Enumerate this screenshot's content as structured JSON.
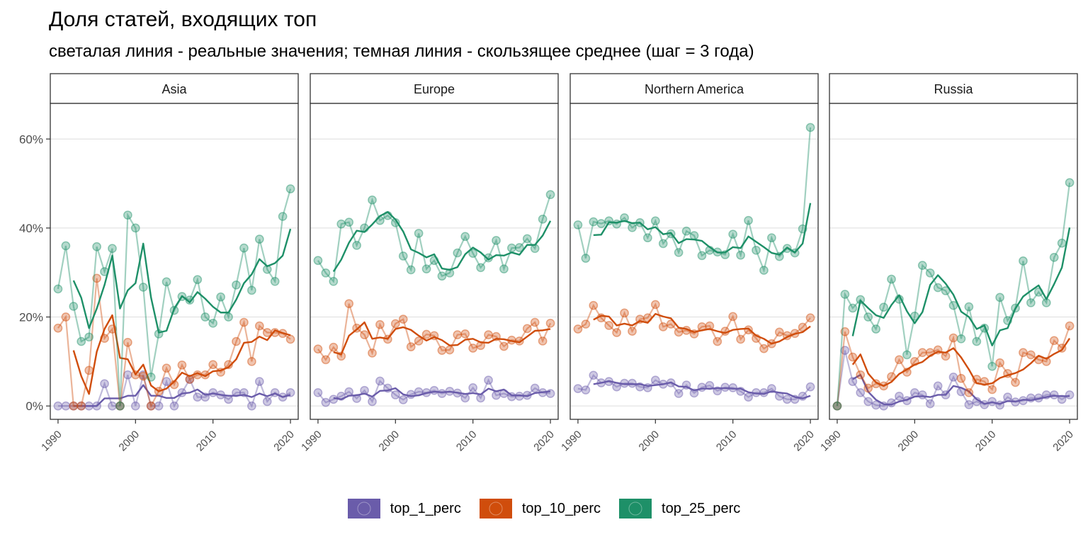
{
  "chart_data": {
    "type": "line",
    "title": "Доля статей, входящих топ",
    "subtitle": "светалая линия - реальные значения; темная линия - скользящее среднее (шаг = 3 года)",
    "xlabel": "",
    "ylabel": "",
    "xlim": [
      1989,
      2021
    ],
    "ylim": [
      -3,
      68
    ],
    "x_ticks": [
      1990,
      2000,
      2010,
      2020
    ],
    "y_ticks": [
      0,
      20,
      40,
      60
    ],
    "y_tick_labels": [
      "0%",
      "20%",
      "40%",
      "60%"
    ],
    "grid": true,
    "legend_position": "bottom",
    "series_names": [
      "top_1_perc",
      "top_10_perc",
      "top_25_perc"
    ],
    "series_colors": [
      "#6a5caa",
      "#d04d0c",
      "#1e9068"
    ],
    "panels": [
      {
        "name": "Asia",
        "years": [
          1990,
          1991,
          1992,
          1993,
          1994,
          1995,
          1996,
          1997,
          1998,
          1999,
          2000,
          2001,
          2002,
          2003,
          2004,
          2005,
          2006,
          2007,
          2008,
          2009,
          2010,
          2011,
          2012,
          2013,
          2014,
          2015,
          2016,
          2017,
          2018,
          2019,
          2020
        ],
        "series": [
          {
            "name": "top_1_perc",
            "values": [
              0,
              0,
              0,
              0,
              0,
              0,
              5,
              0,
              0,
              7,
              0,
              7,
              0,
              0,
              5.5,
              0,
              3,
              6,
              2,
              2,
              3,
              2.5,
              1.5,
              3,
              3,
              0,
              5.5,
              1,
              3,
              2,
              3
            ],
            "moving_avg": [
              null,
              null,
              0,
              0,
              0,
              0,
              1.7,
              1.7,
              1.7,
              2.3,
              2.3,
              4.7,
              2.3,
              2.3,
              1.8,
              1.8,
              2.8,
              3,
              3.7,
              2.5,
              2.8,
              2.5,
              2.3,
              2.3,
              2.5,
              2,
              2.8,
              2.2,
              2.8,
              2,
              2.5
            ]
          },
          {
            "name": "top_10_perc",
            "values": [
              17.5,
              20,
              0,
              0,
              8,
              28.7,
              15.2,
              17.3,
              0,
              14.3,
              7,
              6.7,
              0,
              3.3,
              8.5,
              4.8,
              9.2,
              6,
              7,
              7,
              9.3,
              7.6,
              9.3,
              14.5,
              18.8,
              10,
              18,
              16.5,
              16.5,
              16.3,
              15
            ],
            "moving_avg": [
              null,
              null,
              12.5,
              6.7,
              2.7,
              12.2,
              17.3,
              20.4,
              10.8,
              10.5,
              7.1,
              9.3,
              4.6,
              3.3,
              3.9,
              5.5,
              7.5,
              6.7,
              7.4,
              6.7,
              7.8,
              8,
              8.7,
              10.5,
              14.2,
              14.4,
              15.6,
              14.8,
              17,
              16.4,
              15.9
            ]
          },
          {
            "name": "top_25_perc",
            "values": [
              26.3,
              36,
              22.4,
              14.5,
              15.5,
              35.8,
              30.2,
              35.4,
              0,
              42.9,
              40,
              26.7,
              6.5,
              16.2,
              27.9,
              21.5,
              24.6,
              23.8,
              28.4,
              20,
              18.6,
              24.5,
              20,
              27.2,
              35.5,
              26,
              37.5,
              30.7,
              28,
              42.6,
              48.8
            ],
            "moving_avg": [
              null,
              null,
              28.2,
              24.3,
              17.5,
              21.9,
              27.2,
              33.8,
              21.9,
              26,
              27.6,
              36.5,
              24.4,
              16.5,
              16.9,
              21.9,
              24.7,
              23.3,
              25.6,
              24.1,
              22.3,
              21,
              21,
              23.9,
              27.6,
              29.6,
              33,
              31.4,
              32.1,
              33.8,
              39.8
            ]
          }
        ]
      },
      {
        "name": "Europe",
        "years": [
          1990,
          1991,
          1992,
          1993,
          1994,
          1995,
          1996,
          1997,
          1998,
          1999,
          2000,
          2001,
          2002,
          2003,
          2004,
          2005,
          2006,
          2007,
          2008,
          2009,
          2010,
          2011,
          2012,
          2013,
          2014,
          2015,
          2016,
          2017,
          2018,
          2019,
          2020
        ],
        "series": [
          {
            "name": "top_1_perc",
            "values": [
              3,
              0.8,
              1.5,
              2.2,
              3.2,
              1.7,
              3.5,
              1,
              5.6,
              4,
              2.5,
              1.4,
              2.6,
              3.2,
              3,
              3.5,
              2.8,
              3.3,
              2.9,
              1.8,
              4.1,
              1.8,
              5.8,
              2.4,
              2.8,
              2.1,
              2.2,
              2.4,
              4,
              3,
              2.8
            ],
            "moving_avg": [
              null,
              null,
              1.8,
              1.5,
              2.3,
              2.4,
              2.8,
              2.1,
              3.4,
              3.5,
              4,
              2.6,
              2.2,
              2.4,
              2.9,
              3.2,
              3.1,
              3.2,
              3,
              2.7,
              2.9,
              2.6,
              3.9,
              3.3,
              3.7,
              2.4,
              2.4,
              2.2,
              2.9,
              3.1,
              3.3
            ]
          },
          {
            "name": "top_10_perc",
            "values": [
              12.8,
              10.4,
              13.2,
              11.2,
              23,
              17.5,
              16,
              11.9,
              18.3,
              15,
              18.5,
              19.5,
              13.3,
              14.6,
              16.1,
              15.8,
              12.5,
              12.6,
              16,
              16.2,
              13,
              13.6,
              16,
              15.6,
              13.4,
              14.8,
              14.6,
              17.4,
              18.8,
              14.6,
              18.6
            ],
            "moving_avg": [
              null,
              null,
              12.1,
              11.6,
              15.8,
              17.2,
              18.8,
              15.1,
              15.4,
              15.1,
              17.3,
              17.7,
              17.1,
              15.8,
              14.7,
              15.5,
              14.8,
              13.6,
              13.7,
              14.9,
              15.1,
              14.3,
              14.2,
              15.1,
              15,
              14.6,
              14.3,
              15.6,
              16.9,
              17,
              17.3
            ]
          },
          {
            "name": "top_25_perc",
            "values": [
              32.7,
              29.9,
              28,
              40.9,
              41.3,
              36.1,
              40,
              46.3,
              41.7,
              42.8,
              41.2,
              33.7,
              30.6,
              38.8,
              30.8,
              32.7,
              29.2,
              29.9,
              34.4,
              38.1,
              34.3,
              31.1,
              33.3,
              37.2,
              30.8,
              35.5,
              35.6,
              37.6,
              35.4,
              42,
              47.5
            ],
            "moving_avg": [
              null,
              null,
              30.2,
              32.9,
              36.7,
              39.4,
              39.1,
              40.8,
              42.7,
              43.6,
              41.9,
              39.2,
              35.2,
              34.4,
              33.4,
              34.1,
              30.9,
              30.6,
              31.2,
              34.1,
              35.6,
              34.5,
              32.9,
              33.9,
              33.8,
              34.5,
              34,
              36.2,
              36.2,
              38.3,
              41.6
            ]
          }
        ]
      },
      {
        "name": "Northern America",
        "years": [
          1990,
          1991,
          1992,
          1993,
          1994,
          1995,
          1996,
          1997,
          1998,
          1999,
          2000,
          2001,
          2002,
          2003,
          2004,
          2005,
          2006,
          2007,
          2008,
          2009,
          2010,
          2011,
          2012,
          2013,
          2014,
          2015,
          2016,
          2017,
          2018,
          2019,
          2020
        ],
        "series": [
          {
            "name": "top_1_perc",
            "values": [
              3.9,
              3.6,
              6.9,
              5.2,
              5.5,
              4.3,
              5.1,
              5.1,
              4.3,
              4.1,
              5.8,
              4.9,
              5.2,
              2.8,
              4.7,
              2.9,
              4.2,
              4.6,
              3.4,
              4.2,
              4.1,
              3.3,
              2,
              3,
              3,
              3.9,
              2.2,
              1.5,
              1.5,
              2.2,
              4.3
            ],
            "moving_avg": [
              null,
              null,
              4.9,
              5.2,
              5.6,
              5.2,
              4.9,
              4.9,
              4.9,
              4.5,
              4.7,
              4.9,
              5.3,
              4.4,
              4.3,
              3.5,
              3.9,
              3.9,
              4,
              4,
              3.9,
              3.9,
              3.1,
              2.8,
              2.7,
              3.3,
              3,
              2.8,
              2,
              1.7,
              2.3
            ]
          },
          {
            "name": "top_10_perc",
            "values": [
              17.3,
              18.4,
              22.6,
              19.8,
              18.1,
              16.5,
              20.9,
              16.8,
              19.5,
              19.8,
              22.8,
              17.8,
              18.4,
              16.6,
              17,
              16.2,
              17.8,
              18,
              14.5,
              16.8,
              20.1,
              15,
              17.1,
              15.2,
              12.9,
              14,
              16.6,
              15.8,
              16.3,
              17.7,
              19.8
            ],
            "moving_avg": [
              null,
              null,
              19.4,
              20.3,
              20.1,
              18.1,
              18.5,
              18.1,
              19.1,
              18.7,
              20.7,
              20.1,
              19.7,
              17.6,
              17.3,
              16.6,
              17,
              17.3,
              16.8,
              16.4,
              17.1,
              17.3,
              17.4,
              15.8,
              15.1,
              14,
              14.5,
              15.5,
              16.2,
              16.6,
              17.9
            ]
          },
          {
            "name": "top_25_perc",
            "values": [
              40.7,
              33.2,
              41.4,
              41,
              41.6,
              40.9,
              42.3,
              40.1,
              41.2,
              37.8,
              41.6,
              36.5,
              38.7,
              34.5,
              39.3,
              38.3,
              33.8,
              35,
              34.6,
              34,
              38.6,
              33.9,
              41.7,
              35,
              30.5,
              37.8,
              33.6,
              35.4,
              34.4,
              39.8,
              62.6
            ],
            "moving_avg": [
              null,
              null,
              38.4,
              38.5,
              41.3,
              41.2,
              41.6,
              41.1,
              41.2,
              39.7,
              40.2,
              38.6,
              38.9,
              36.6,
              37.5,
              37.4,
              37.1,
              35.7,
              34.5,
              34.5,
              35.7,
              35.5,
              38.1,
              36.9,
              35.7,
              34.4,
              34,
              35.6,
              34.5,
              36.5,
              45.6
            ]
          }
        ]
      },
      {
        "name": "Russia",
        "years": [
          1990,
          1991,
          1992,
          1993,
          1994,
          1995,
          1996,
          1997,
          1998,
          1999,
          2000,
          2001,
          2002,
          2003,
          2004,
          2005,
          2006,
          2007,
          2008,
          2009,
          2010,
          2011,
          2012,
          2013,
          2014,
          2015,
          2016,
          2017,
          2018,
          2019,
          2020
        ],
        "series": [
          {
            "name": "top_1_perc",
            "values": [
              0,
              12.5,
              5.5,
              3,
              1,
              0.2,
              0,
              0.7,
              2.2,
              1.2,
              3,
              2.5,
              0.5,
              4.5,
              2.5,
              6.5,
              3.2,
              0.3,
              1,
              0.3,
              1,
              0.2,
              2,
              0.9,
              1.2,
              1.8,
              1.8,
              2.5,
              2.5,
              1.5,
              2.5
            ],
            "moving_avg": [
              null,
              null,
              6,
              7,
              3.2,
              1.4,
              0.4,
              0.3,
              1,
              1.4,
              2.1,
              2.2,
              2,
              2.5,
              2.5,
              4.5,
              4.1,
              3.3,
              1.5,
              0.5,
              0.8,
              0.5,
              1.1,
              1,
              1.4,
              1.3,
              1.6,
              2,
              2.3,
              2.2,
              2.2
            ]
          },
          {
            "name": "top_10_perc",
            "values": [
              0,
              16.7,
              11,
              7,
              4,
              5,
              4.5,
              6.6,
              10.4,
              7.6,
              10,
              12,
              12,
              12.6,
              11.2,
              15.3,
              6.2,
              3,
              6,
              5.5,
              3.7,
              9.7,
              7.3,
              5.3,
              12,
              11.5,
              10.4,
              10,
              14.7,
              13,
              18
            ],
            "moving_avg": [
              null,
              null,
              9.3,
              11.6,
              7.3,
              5.3,
              4.5,
              5.4,
              7.2,
              8.2,
              9.3,
              9.9,
              11.3,
              12.2,
              12,
              13,
              10.9,
              8.2,
              5.1,
              4.8,
              5.1,
              6.3,
              6.9,
              7.4,
              8.2,
              9.6,
              11.3,
              10.6,
              11.7,
              12.6,
              15.2
            ]
          },
          {
            "name": "top_25_perc",
            "values": [
              0,
              25.1,
              22,
              23.9,
              20,
              17.3,
              22.2,
              28.5,
              24,
              11.5,
              20.2,
              31.6,
              29.9,
              26.6,
              25.9,
              22.6,
              15.1,
              22.3,
              14.5,
              17.5,
              8.9,
              24.4,
              19.2,
              22,
              32.6,
              23.2,
              25.6,
              23.2,
              33.4,
              36.6,
              50.2
            ],
            "moving_avg": [
              null,
              null,
              15.7,
              23.7,
              22,
              20.4,
              19.8,
              22.7,
              24.9,
              21.3,
              18.6,
              21.1,
              27.2,
              29.4,
              27.5,
              25,
              21.2,
              20,
              17.3,
              18.1,
              13.6,
              17,
              17.5,
              21.9,
              24.6,
              25.9,
              27.1,
              24,
              27.4,
              31.1,
              40.1
            ]
          }
        ]
      }
    ]
  }
}
